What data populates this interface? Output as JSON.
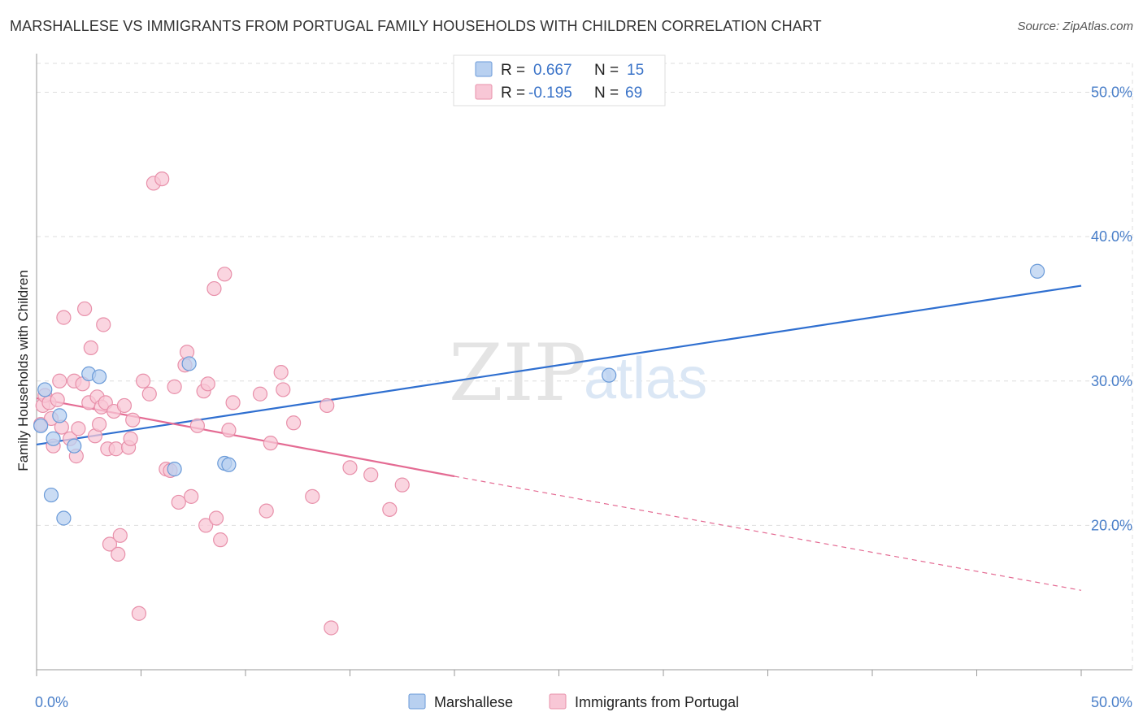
{
  "header": {
    "title": "MARSHALLESE VS IMMIGRANTS FROM PORTUGAL FAMILY HOUSEHOLDS WITH CHILDREN CORRELATION CHART",
    "source": "Source: ZipAtlas.com"
  },
  "watermark": {
    "zip": "ZIP",
    "atlas": "atlas"
  },
  "legend": {
    "r_label": "R =",
    "n_label": "N =",
    "rows": [
      {
        "r": "0.667",
        "n": "15"
      },
      {
        "r": "-0.195",
        "n": "69"
      }
    ]
  },
  "colors": {
    "blue_fill": "#b8d0f0",
    "blue_stroke": "#6a9ad8",
    "blue_line": "#2f6fd0",
    "pink_fill": "#f8c7d6",
    "pink_stroke": "#e890aa",
    "pink_line": "#e46b93",
    "grid": "#dedede",
    "axis_label": "#4a7fc9"
  },
  "chart_data": {
    "type": "scatter",
    "title": "MARSHALLESE VS IMMIGRANTS FROM PORTUGAL FAMILY HOUSEHOLDS WITH CHILDREN CORRELATION CHART",
    "xlabel": "",
    "ylabel": "Family Households with Children",
    "xlim": [
      0,
      50
    ],
    "ylim": [
      10,
      52
    ],
    "x_tick_labels": [
      "0.0%",
      "50.0%"
    ],
    "y_ticks": [
      20,
      30,
      40,
      50
    ],
    "y_tick_labels": [
      "20.0%",
      "30.0%",
      "40.0%",
      "50.0%"
    ],
    "grid": true,
    "legend_position": "bottom",
    "series": [
      {
        "name": "Marshallese",
        "r": 0.667,
        "n": 15,
        "points": [
          [
            0.2,
            26.9
          ],
          [
            0.4,
            29.4
          ],
          [
            0.7,
            22.1
          ],
          [
            0.8,
            26.0
          ],
          [
            1.1,
            27.6
          ],
          [
            1.3,
            20.5
          ],
          [
            1.8,
            25.5
          ],
          [
            2.5,
            30.5
          ],
          [
            3.0,
            30.3
          ],
          [
            6.6,
            23.9
          ],
          [
            7.3,
            31.2
          ],
          [
            9.0,
            24.3
          ],
          [
            9.2,
            24.2
          ],
          [
            27.4,
            30.4
          ],
          [
            47.9,
            37.6
          ]
        ],
        "trend": {
          "x": [
            0,
            50
          ],
          "y": [
            25.6,
            36.6
          ]
        }
      },
      {
        "name": "Immigrants from Portugal",
        "r": -0.195,
        "n": 69,
        "points": [
          [
            0.2,
            27.0
          ],
          [
            0.3,
            28.3
          ],
          [
            0.4,
            29.0
          ],
          [
            0.6,
            28.5
          ],
          [
            0.7,
            27.4
          ],
          [
            0.8,
            25.5
          ],
          [
            1.0,
            28.7
          ],
          [
            1.1,
            30.0
          ],
          [
            1.2,
            26.8
          ],
          [
            1.3,
            34.4
          ],
          [
            1.6,
            26.0
          ],
          [
            1.8,
            30.0
          ],
          [
            1.9,
            24.8
          ],
          [
            2.0,
            26.7
          ],
          [
            2.2,
            29.8
          ],
          [
            2.3,
            35.0
          ],
          [
            2.5,
            28.5
          ],
          [
            2.6,
            32.3
          ],
          [
            2.8,
            26.2
          ],
          [
            2.9,
            28.9
          ],
          [
            3.0,
            27.0
          ],
          [
            3.1,
            28.2
          ],
          [
            3.2,
            33.9
          ],
          [
            3.3,
            28.5
          ],
          [
            3.4,
            25.3
          ],
          [
            3.5,
            18.7
          ],
          [
            3.7,
            27.9
          ],
          [
            3.8,
            25.3
          ],
          [
            3.9,
            18.0
          ],
          [
            4.0,
            19.3
          ],
          [
            4.2,
            28.3
          ],
          [
            4.4,
            25.4
          ],
          [
            4.5,
            26.0
          ],
          [
            4.6,
            27.3
          ],
          [
            4.9,
            13.9
          ],
          [
            5.1,
            30.0
          ],
          [
            5.4,
            29.1
          ],
          [
            5.6,
            43.7
          ],
          [
            6.0,
            44.0
          ],
          [
            6.2,
            23.9
          ],
          [
            6.4,
            23.8
          ],
          [
            6.6,
            29.6
          ],
          [
            6.8,
            21.6
          ],
          [
            7.1,
            31.1
          ],
          [
            7.2,
            32.0
          ],
          [
            7.4,
            22.0
          ],
          [
            7.7,
            26.9
          ],
          [
            8.0,
            29.3
          ],
          [
            8.1,
            20.0
          ],
          [
            8.2,
            29.8
          ],
          [
            8.5,
            36.4
          ],
          [
            8.6,
            20.5
          ],
          [
            8.8,
            19.0
          ],
          [
            9.0,
            37.4
          ],
          [
            9.2,
            26.6
          ],
          [
            9.4,
            28.5
          ],
          [
            10.7,
            29.1
          ],
          [
            11.0,
            21.0
          ],
          [
            11.2,
            25.7
          ],
          [
            11.7,
            30.6
          ],
          [
            11.8,
            29.4
          ],
          [
            12.3,
            27.1
          ],
          [
            13.2,
            22.0
          ],
          [
            13.9,
            28.3
          ],
          [
            14.1,
            12.9
          ],
          [
            15.0,
            24.0
          ],
          [
            16.0,
            23.5
          ],
          [
            16.9,
            21.1
          ],
          [
            17.5,
            22.8
          ]
        ],
        "trend": {
          "x": [
            0,
            20
          ],
          "y": [
            28.8,
            23.4
          ]
        },
        "trend_dashed": {
          "x": [
            20,
            50
          ],
          "y": [
            23.4,
            15.5
          ]
        }
      }
    ]
  }
}
